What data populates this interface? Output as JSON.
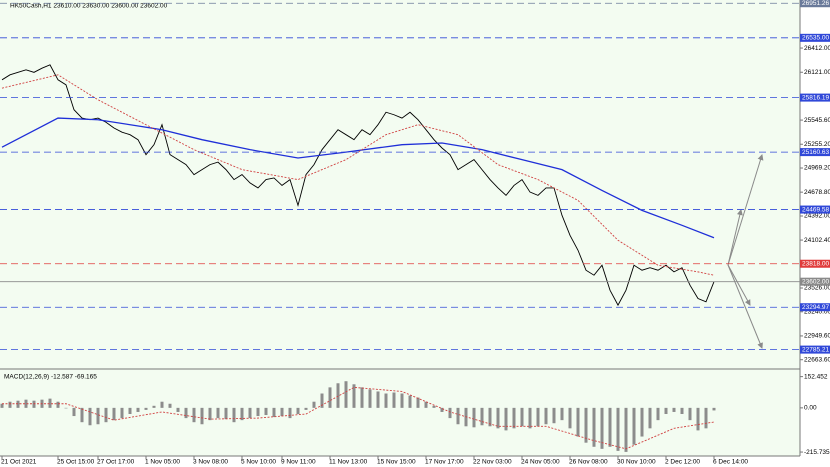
{
  "chart_data": [
    {
      "type": "line",
      "title": "HK50Cash,H1  23610.00 23630.00 23600.00 23602.00",
      "categories": [
        "21 Oct 2021",
        null,
        null,
        null,
        null,
        null,
        null,
        "25 Oct 15:00",
        null,
        null,
        null,
        null,
        "27 Oct 17:00",
        null,
        null,
        null,
        null,
        null,
        "1 Nov 05:00",
        null,
        null,
        null,
        null,
        null,
        "3 Nov 08:00",
        null,
        null,
        null,
        null,
        null,
        "5 Nov 10:00",
        null,
        null,
        null,
        null,
        "9 Nov 11:00",
        null,
        null,
        null,
        null,
        null,
        "11 Nov 13:00",
        null,
        null,
        null,
        null,
        null,
        "15 Nov 15:00",
        null,
        null,
        null,
        null,
        null,
        "17 Nov 17:00",
        null,
        null,
        null,
        null,
        null,
        "22 Nov 03:00",
        null,
        null,
        null,
        null,
        null,
        "24 Nov 05:00",
        null,
        null,
        null,
        null,
        null,
        "26 Nov 08:00",
        null,
        null,
        null,
        null,
        null,
        "30 Nov 10:00",
        null,
        null,
        null,
        null,
        null,
        "2 Dec 12:00",
        null,
        null,
        null,
        null,
        null,
        "6 Dec 14:00"
      ],
      "series": [
        {
          "color": "#000000",
          "values": [
            26030,
            26090,
            26120,
            26150,
            26120,
            26170,
            26210,
            26030,
            25970,
            25670,
            25570,
            25550,
            25570,
            25520,
            25450,
            25400,
            25370,
            25310,
            25130,
            25250,
            25490,
            25130,
            25070,
            25010,
            24890,
            24950,
            25010,
            25040,
            24950,
            24830,
            24890,
            24790,
            24730,
            24830,
            24850,
            24760,
            24830,
            24520,
            24890,
            25010,
            25190,
            25310,
            25430,
            25370,
            25310,
            25430,
            25370,
            25490,
            25640,
            25610,
            25570,
            25640,
            25550,
            25430,
            25310,
            25210,
            25130,
            24950,
            25010,
            25070,
            24950,
            24830,
            24730,
            24640,
            24760,
            24830,
            24680,
            24640,
            24730,
            24730,
            24400,
            24160,
            23980,
            23740,
            23680,
            23800,
            23500,
            23320,
            23500,
            23800,
            23740,
            23770,
            23740,
            23800,
            23720,
            23770,
            23560,
            23400,
            23360,
            23602
          ]
        },
        {
          "color": "#1f2fd8",
          "x": [
            0,
            7,
            12,
            20,
            25,
            31,
            37,
            43,
            50,
            55,
            60,
            65,
            70,
            75,
            80,
            85,
            89
          ],
          "values": [
            25220,
            25570,
            25550,
            25430,
            25310,
            25190,
            25090,
            25160,
            25250,
            25270,
            25190,
            25070,
            24950,
            24700,
            24460,
            24280,
            24130
          ]
        },
        {
          "color": "#d04040",
          "dash": true,
          "x": [
            0,
            7,
            12,
            18,
            24,
            30,
            37,
            43,
            48,
            52,
            57,
            62,
            67,
            72,
            77,
            82,
            87,
            89
          ],
          "values": [
            25930,
            26090,
            25790,
            25490,
            25190,
            24950,
            24830,
            25070,
            25370,
            25490,
            25370,
            25010,
            24830,
            24580,
            24100,
            23800,
            23720,
            23680
          ]
        }
      ],
      "ylim": [
        22600,
        26990
      ],
      "yticks": [
        {
          "value": 26412,
          "label": "26412.00"
        },
        {
          "value": 26121,
          "label": "26121.00"
        },
        {
          "value": 25545.6,
          "label": "25545.60"
        },
        {
          "value": 25255.2,
          "label": "25255.20"
        },
        {
          "value": 24969.2,
          "label": "24969.20"
        },
        {
          "value": 24678.8,
          "label": "24678.80"
        },
        {
          "value": 24392,
          "label": "24392.00"
        },
        {
          "value": 24102.4,
          "label": "24102.40"
        },
        {
          "value": 23526,
          "label": "23526.00"
        },
        {
          "value": 23240,
          "label": "23240.00"
        },
        {
          "value": 22949.6,
          "label": "22949.60"
        },
        {
          "value": 22663.6,
          "label": "22663.60"
        }
      ],
      "levels": [
        {
          "value": 26951.26,
          "color": "#6a7a9a"
        },
        {
          "value": 26535,
          "label": "26535.00",
          "color": "#3048d8"
        },
        {
          "value": 25816.19,
          "color": "#3048d8"
        },
        {
          "value": 25160.63,
          "color": "#3048d8"
        },
        {
          "value": 24469.58,
          "color": "#3048d8"
        },
        {
          "value": 23818,
          "label": "23818.00",
          "color": "#e03a3a"
        },
        {
          "value": 23602,
          "label": "23602.00",
          "color": "#8a8a8a"
        },
        {
          "value": 23294.97,
          "color": "#3048d8"
        },
        {
          "value": 22785.21,
          "color": "#3048d8"
        }
      ]
    },
    {
      "type": "bar",
      "title": "MACD(12,26,9) -12.587 -69.165",
      "series": [
        {
          "color": "#8c8c8c",
          "values": [
            20,
            30,
            35,
            40,
            35,
            40,
            45,
            30,
            0,
            -40,
            -70,
            -85,
            -80,
            -70,
            -60,
            -50,
            -30,
            -20,
            -10,
            10,
            30,
            20,
            -20,
            -50,
            -70,
            -80,
            -60,
            -50,
            -55,
            -70,
            -60,
            -50,
            -40,
            -35,
            -45,
            -40,
            -50,
            -30,
            -10,
            30,
            70,
            100,
            120,
            130,
            115,
            100,
            90,
            80,
            70,
            75,
            70,
            60,
            50,
            30,
            10,
            -20,
            -50,
            -80,
            -90,
            -95,
            -85,
            -90,
            -100,
            -110,
            -100,
            -90,
            -100,
            -90,
            -80,
            -75,
            -60,
            -100,
            -140,
            -170,
            -190,
            -200,
            -190,
            -210,
            -215,
            -180,
            -140,
            -100,
            -60,
            -30,
            -20,
            -30,
            -60,
            -110,
            -100,
            -12.587
          ]
        },
        {
          "color": "#d04040",
          "dash": true,
          "x": [
            0,
            8,
            14,
            20,
            26,
            32,
            38,
            44,
            50,
            56,
            62,
            68,
            74,
            78,
            84,
            89
          ],
          "values": [
            20,
            20,
            -60,
            -20,
            -55,
            -50,
            -30,
            100,
            80,
            -20,
            -90,
            -90,
            -160,
            -200,
            -100,
            -69.165
          ]
        }
      ],
      "ylim": [
        -235,
        175
      ],
      "yticks": [
        152.452,
        {
          "value": 0,
          "label": "0.00"
        },
        -215.735
      ]
    }
  ]
}
